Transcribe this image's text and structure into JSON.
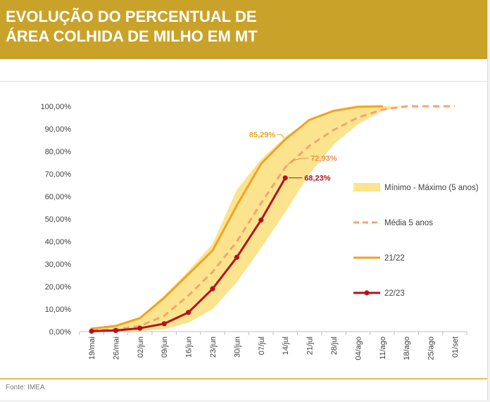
{
  "chart_data": {
    "type": "line",
    "title_lines": [
      "EVOLUÇÃO DO PERCENTUAL DE",
      "ÁREA COLHIDA DE MILHO EM MT"
    ],
    "xlabel": "",
    "ylabel": "",
    "categories": [
      "19/mai",
      "26/mai",
      "02/jun",
      "09/jun",
      "16/jun",
      "23/jun",
      "30/jun",
      "07/jul",
      "14/jul",
      "21/jul",
      "28/jul",
      "04/ago",
      "11/ago",
      "18/ago",
      "25/ago",
      "01/set"
    ],
    "yaxis": {
      "ylim": [
        0,
        100
      ],
      "tick_values": [
        0,
        10,
        20,
        30,
        40,
        50,
        60,
        70,
        80,
        90,
        100
      ],
      "tick_labels": [
        "0,00%",
        "10,00%",
        "20,00%",
        "30,00%",
        "40,00%",
        "50,00%",
        "60,00%",
        "70,00%",
        "80,00%",
        "90,00%",
        "100,00%"
      ]
    },
    "band": {
      "name": "Mínimo - Máximo (5 anos)",
      "min": [
        0,
        0,
        0.3,
        1.0,
        4.0,
        10.0,
        22.0,
        37.0,
        53.0,
        70.0,
        83.0,
        92.0,
        98.0,
        100,
        null,
        null
      ],
      "max": [
        1.5,
        3.0,
        6.5,
        16.0,
        27.0,
        39.0,
        63.0,
        76.5,
        86.5,
        94.0,
        98.0,
        100,
        100,
        100,
        null,
        null
      ]
    },
    "series": [
      {
        "name": "Média 5 anos",
        "dashed": true,
        "markers": false,
        "values": [
          0.5,
          1.0,
          2.5,
          7.0,
          16.0,
          26.5,
          40.0,
          57.0,
          72.93,
          82.5,
          89.5,
          95.0,
          98.5,
          100,
          100,
          100
        ]
      },
      {
        "name": "21/22",
        "dashed": false,
        "markers": false,
        "values": [
          1.3,
          2.5,
          6.0,
          15.0,
          25.5,
          36.0,
          56.0,
          74.5,
          85.29,
          94.0,
          98.0,
          99.8,
          100,
          null,
          null,
          null
        ]
      },
      {
        "name": "22/23",
        "dashed": false,
        "markers": true,
        "values": [
          0.2,
          0.5,
          1.5,
          3.5,
          8.5,
          19.0,
          33.0,
          49.5,
          68.23,
          null,
          null,
          null,
          null,
          null,
          null,
          null
        ]
      }
    ],
    "data_labels": [
      {
        "series_index": 1,
        "category_index": 8,
        "text": "85,29%",
        "color": "#E5A41E"
      },
      {
        "series_index": 0,
        "category_index": 8,
        "text": "72,93%",
        "color": "#EB8F4C"
      },
      {
        "series_index": 2,
        "category_index": 8,
        "text": "68,23%",
        "color": "#B5121B"
      }
    ],
    "legend_position": "right",
    "grid": false,
    "source": "Fonte: IMEA"
  },
  "colors": {
    "banner": "#C9A229",
    "band": "#FCE48E",
    "media": "#F3A56F",
    "s2122": "#F1A324",
    "s2223": "#B5121B"
  }
}
